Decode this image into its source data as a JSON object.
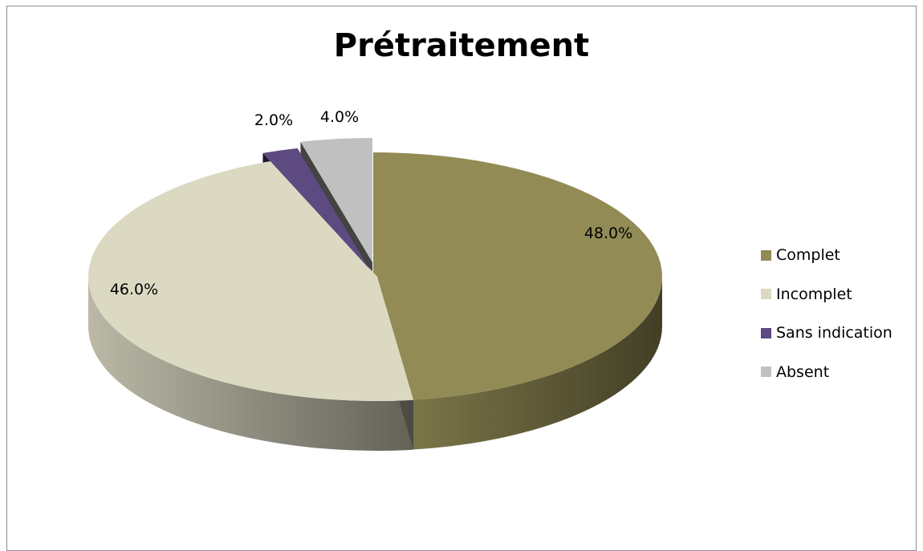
{
  "chart_data": {
    "type": "pie",
    "title": "Prétraitement",
    "categories": [
      "Complet",
      "Incomplet",
      "Sans indication",
      "Absent"
    ],
    "values": [
      48.0,
      46.0,
      2.0,
      4.0
    ],
    "labels": [
      "48.0%",
      "46.0%",
      "2.0%",
      "4.0%"
    ],
    "unit": "%",
    "colors": [
      "#928b55",
      "#dcd9c3",
      "#5d4a80",
      "#c0c0c0"
    ],
    "style": "3d-exploded",
    "legend_position": "right"
  },
  "legend": {
    "items": [
      {
        "label": "Complet",
        "color": "#928b55"
      },
      {
        "label": "Incomplet",
        "color": "#dcd9c3"
      },
      {
        "label": "Sans indication",
        "color": "#5d4a80"
      },
      {
        "label": "Absent",
        "color": "#c0c0c0"
      }
    ]
  }
}
